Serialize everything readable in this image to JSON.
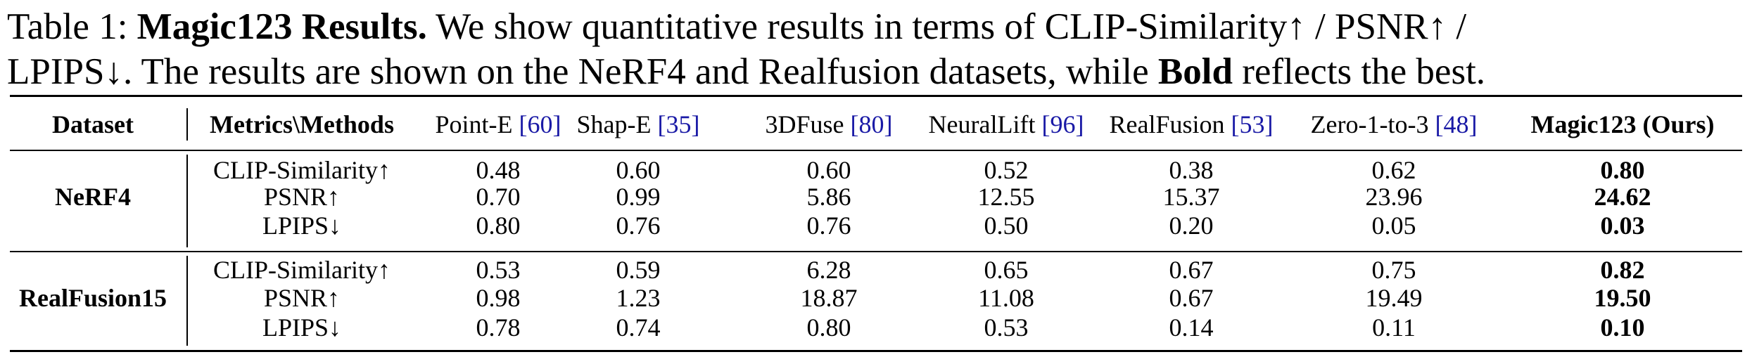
{
  "caption": {
    "line1_prefix": "Table 1: ",
    "line1_title": "Magic123 Results.",
    "line1_rest": " We show quantitative results in terms of CLIP-Similarity↑ / PSNR↑ /",
    "line2_a": "LPIPS↓. The results are shown on the NeRF4 and Realfusion datasets, while ",
    "line2_bold": "Bold",
    "line2_b": " reflects the best."
  },
  "table": {
    "header": {
      "dataset": "Dataset",
      "metrics": "Metrics\\Methods",
      "methods": [
        {
          "name": "Point-E ",
          "ref": "[60]",
          "bold": false
        },
        {
          "name": "Shap-E ",
          "ref": "[35]",
          "bold": false
        },
        {
          "name": "3DFuse ",
          "ref": "[80]",
          "bold": false
        },
        {
          "name": "NeuralLift ",
          "ref": "[96]",
          "bold": false
        },
        {
          "name": "RealFusion ",
          "ref": "[53]",
          "bold": false
        },
        {
          "name": "Zero-1-to-3 ",
          "ref": "[48]",
          "bold": false
        },
        {
          "name": "Magic123 (Ours)",
          "ref": "",
          "bold": true
        }
      ]
    },
    "groups": [
      {
        "dataset": "NeRF4",
        "rows": [
          {
            "metric": "CLIP-Similarity↑",
            "values": [
              "0.48",
              "0.60",
              "0.60",
              "0.52",
              "0.38",
              "0.62",
              "0.80"
            ]
          },
          {
            "metric": "PSNR↑",
            "values": [
              "0.70",
              "0.99",
              "5.86",
              "12.55",
              "15.37",
              "23.96",
              "24.62"
            ]
          },
          {
            "metric": "LPIPS↓",
            "values": [
              "0.80",
              "0.76",
              "0.76",
              "0.50",
              "0.20",
              "0.05",
              "0.03"
            ]
          }
        ]
      },
      {
        "dataset": "RealFusion15",
        "rows": [
          {
            "metric": "CLIP-Similarity↑",
            "values": [
              "0.53",
              "0.59",
              "6.28",
              "0.65",
              "0.67",
              "0.75",
              "0.82"
            ]
          },
          {
            "metric": "PSNR↑",
            "values": [
              "0.98",
              "1.23",
              "18.87",
              "11.08",
              "0.67",
              "19.49",
              "19.50"
            ]
          },
          {
            "metric": "LPIPS↓",
            "values": [
              "0.78",
              "0.74",
              "0.80",
              "0.53",
              "0.14",
              "0.11",
              "0.10"
            ]
          }
        ]
      }
    ]
  }
}
